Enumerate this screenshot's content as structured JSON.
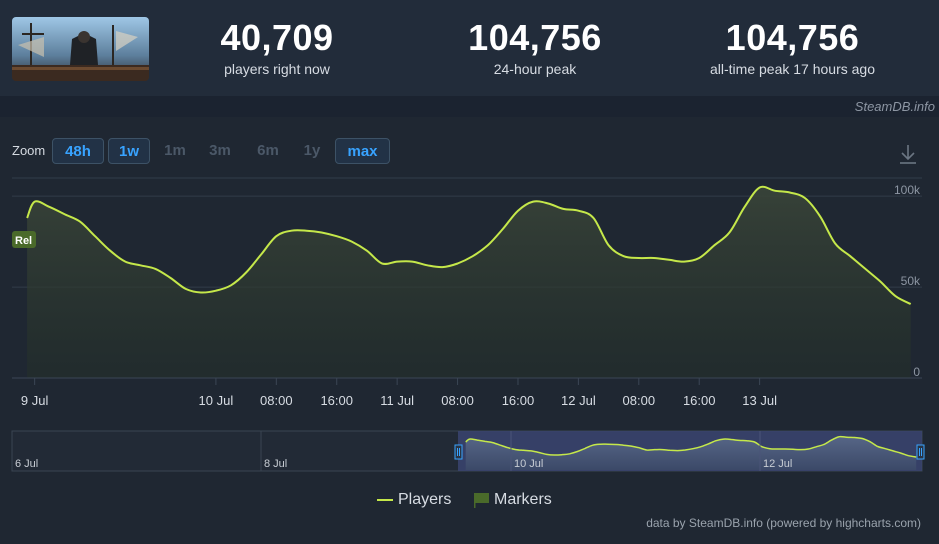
{
  "header": {
    "stats": [
      {
        "value": "40,709",
        "label": "players right now"
      },
      {
        "value": "104,756",
        "label": "24-hour peak"
      },
      {
        "value": "104,756",
        "label": "all-time peak 17 hours ago"
      }
    ],
    "source_credit": "SteamDB.info"
  },
  "zoom": {
    "label": "Zoom",
    "buttons": [
      {
        "label": "48h",
        "active": true
      },
      {
        "label": "1w",
        "active": true
      },
      {
        "label": "1m",
        "active": false
      },
      {
        "label": "3m",
        "active": false
      },
      {
        "label": "6m",
        "active": false
      },
      {
        "label": "1y",
        "active": false
      },
      {
        "label": "max",
        "active": true
      }
    ]
  },
  "chart_data": {
    "type": "line",
    "series": [
      {
        "name": "Players",
        "color": "#c5e84a",
        "points": [
          [
            "8 Jul 23:00",
            88000
          ],
          [
            "9 Jul 00:00",
            97000
          ],
          [
            "9 Jul 02:00",
            94000
          ],
          [
            "9 Jul 04:00",
            90000
          ],
          [
            "9 Jul 06:00",
            86000
          ],
          [
            "9 Jul 08:00",
            78000
          ],
          [
            "9 Jul 10:00",
            70000
          ],
          [
            "9 Jul 12:00",
            64000
          ],
          [
            "9 Jul 14:00",
            62000
          ],
          [
            "9 Jul 16:00",
            60000
          ],
          [
            "9 Jul 18:00",
            55000
          ],
          [
            "9 Jul 20:00",
            49000
          ],
          [
            "9 Jul 22:00",
            47000
          ],
          [
            "10 Jul 00:00",
            48000
          ],
          [
            "10 Jul 02:00",
            51000
          ],
          [
            "10 Jul 04:00",
            58000
          ],
          [
            "10 Jul 06:00",
            68000
          ],
          [
            "10 Jul 08:00",
            78000
          ],
          [
            "10 Jul 10:00",
            81000
          ],
          [
            "10 Jul 12:00",
            81000
          ],
          [
            "10 Jul 14:00",
            80000
          ],
          [
            "10 Jul 16:00",
            78000
          ],
          [
            "10 Jul 18:00",
            75000
          ],
          [
            "10 Jul 20:00",
            70000
          ],
          [
            "10 Jul 22:00",
            63000
          ],
          [
            "11 Jul 00:00",
            64000
          ],
          [
            "11 Jul 02:00",
            64000
          ],
          [
            "11 Jul 04:00",
            62000
          ],
          [
            "11 Jul 06:00",
            61000
          ],
          [
            "11 Jul 08:00",
            63000
          ],
          [
            "11 Jul 10:00",
            67000
          ],
          [
            "11 Jul 12:00",
            73000
          ],
          [
            "11 Jul 14:00",
            82000
          ],
          [
            "11 Jul 16:00",
            92000
          ],
          [
            "11 Jul 18:00",
            97000
          ],
          [
            "11 Jul 20:00",
            96000
          ],
          [
            "11 Jul 22:00",
            93000
          ],
          [
            "12 Jul 00:00",
            92000
          ],
          [
            "12 Jul 02:00",
            88000
          ],
          [
            "12 Jul 04:00",
            73000
          ],
          [
            "12 Jul 06:00",
            67000
          ],
          [
            "12 Jul 08:00",
            66000
          ],
          [
            "12 Jul 10:00",
            66000
          ],
          [
            "12 Jul 12:00",
            65000
          ],
          [
            "12 Jul 14:00",
            64000
          ],
          [
            "12 Jul 16:00",
            66000
          ],
          [
            "12 Jul 18:00",
            73000
          ],
          [
            "12 Jul 20:00",
            80000
          ],
          [
            "12 Jul 22:00",
            94000
          ],
          [
            "13 Jul 00:00",
            104756
          ],
          [
            "13 Jul 02:00",
            103000
          ],
          [
            "13 Jul 04:00",
            102000
          ],
          [
            "13 Jul 06:00",
            99000
          ],
          [
            "13 Jul 08:00",
            89000
          ],
          [
            "13 Jul 10:00",
            74000
          ],
          [
            "13 Jul 12:00",
            67000
          ],
          [
            "13 Jul 14:00",
            60000
          ],
          [
            "13 Jul 16:00",
            53000
          ],
          [
            "13 Jul 18:00",
            45000
          ],
          [
            "13 Jul 20:00",
            40709
          ]
        ]
      }
    ],
    "x_ticks": [
      "9 Jul",
      "10 Jul",
      "08:00",
      "16:00",
      "11 Jul",
      "08:00",
      "16:00",
      "12 Jul",
      "08:00",
      "16:00",
      "13 Jul"
    ],
    "y_ticks": [
      "0",
      "50k",
      "100k"
    ],
    "ylim": [
      0,
      110000
    ],
    "grid": true,
    "marker_label": "Rel",
    "navigator": {
      "labels": [
        "6 Jul",
        "8 Jul",
        "10 Jul",
        "12 Jul"
      ]
    },
    "legend": {
      "placement": "bottom-center",
      "items": [
        {
          "name": "Players",
          "color": "#c5e84a"
        },
        {
          "name": "Markers",
          "color": "#4a6a2a"
        }
      ]
    }
  },
  "footer": {
    "credit": "data by SteamDB.info (powered by highcharts.com)"
  }
}
